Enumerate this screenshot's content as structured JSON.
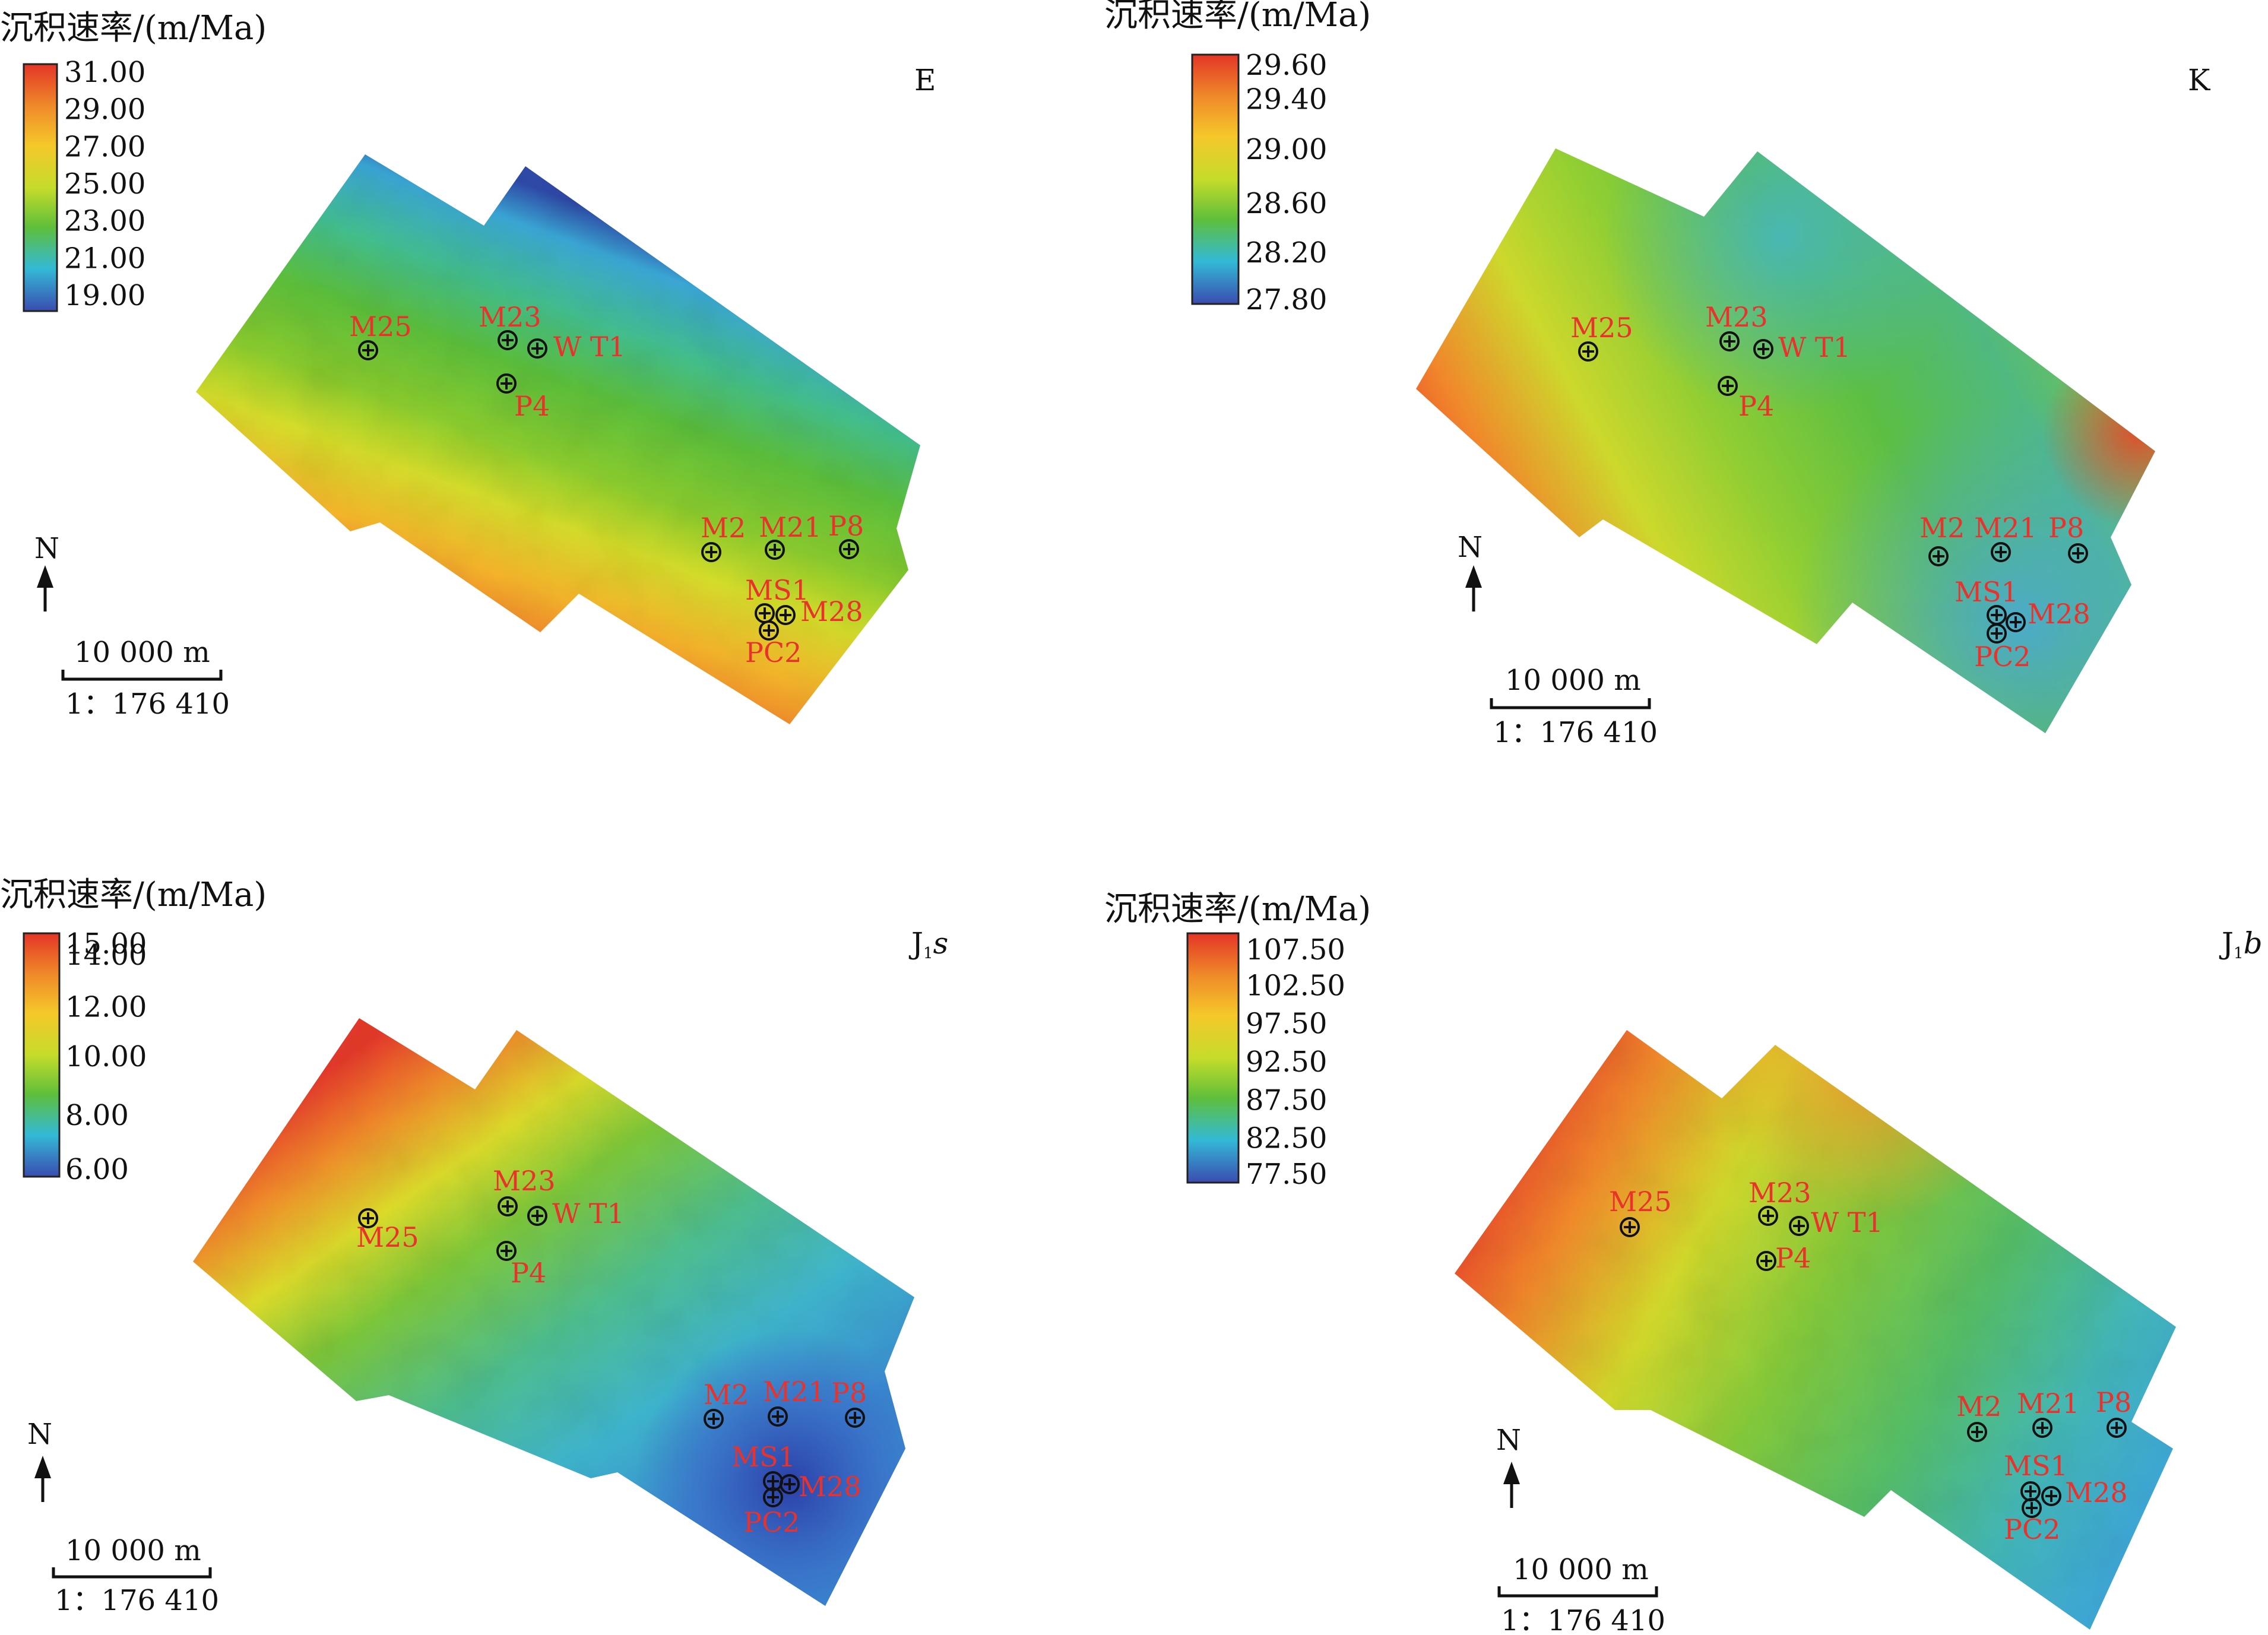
{
  "figure": {
    "panels": [
      {
        "id": "E",
        "label": "E",
        "legend": {
          "title": "沉积速率/(m/Ma)",
          "ticks": [
            "31.00",
            "29.00",
            "27.00",
            "25.00",
            "23.00",
            "21.00",
            "19.00"
          ]
        },
        "north": "N",
        "scale": {
          "distance": "10 000 m",
          "ratio": "1：176 410"
        },
        "wells": [
          "M25",
          "M23",
          "W T1",
          "P4",
          "M2",
          "M21",
          "P8",
          "MS1",
          "M28",
          "PC2"
        ],
        "gradient": [
          "#3a4cb0",
          "#33b9d6",
          "#5fbf3a",
          "#c6dc2a",
          "#f5c82a",
          "#f08a2a",
          "#e43527"
        ]
      },
      {
        "id": "K",
        "label": "K",
        "legend": {
          "title": "沉积速率/(m/Ma)",
          "ticks": [
            "29.60",
            "29.40",
            "29.00",
            "28.60",
            "28.20",
            "27.80"
          ]
        },
        "north": "N",
        "scale": {
          "distance": "10 000 m",
          "ratio": "1：176 410"
        },
        "wells": [
          "M25",
          "M23",
          "W T1",
          "P4",
          "M2",
          "M21",
          "P8",
          "MS1",
          "M28",
          "PC2"
        ],
        "gradient": [
          "#3a4cb0",
          "#33b9d6",
          "#5fbf3a",
          "#c6dc2a",
          "#f5c82a",
          "#f08a2a",
          "#e43527"
        ]
      },
      {
        "id": "J1s",
        "label_main": "J",
        "label_sub": "1",
        "label_italic": "s",
        "legend": {
          "title": "沉积速率/(m/Ma)",
          "ticks": [
            "15.00",
            "14.00",
            "12.00",
            "10.00",
            "8.00",
            "6.00"
          ]
        },
        "north": "N",
        "scale": {
          "distance": "10 000 m",
          "ratio": "1：176 410"
        },
        "wells": [
          "M25",
          "M23",
          "W T1",
          "P4",
          "M2",
          "M21",
          "P8",
          "MS1",
          "M28",
          "PC2"
        ],
        "gradient": [
          "#3a4cb0",
          "#33b9d6",
          "#5fbf3a",
          "#c6dc2a",
          "#f5c82a",
          "#f08a2a",
          "#e43527"
        ]
      },
      {
        "id": "J1b",
        "label_main": "J",
        "label_sub": "1",
        "label_italic": "b",
        "legend": {
          "title": "沉积速率/(m/Ma)",
          "ticks": [
            "107.50",
            "102.50",
            "97.50",
            "92.50",
            "87.50",
            "82.50",
            "77.50"
          ]
        },
        "north": "N",
        "scale": {
          "distance": "10 000 m",
          "ratio": "1：176 410"
        },
        "wells": [
          "M25",
          "M23",
          "W T1",
          "P4",
          "M2",
          "M21",
          "P8",
          "MS1",
          "M28",
          "PC2"
        ],
        "gradient": [
          "#3a4cb0",
          "#33b9d6",
          "#5fbf3a",
          "#c6dc2a",
          "#f5c82a",
          "#f08a2a",
          "#e43527"
        ]
      }
    ],
    "colors": {
      "well_label": "#e8322b",
      "well_symbol": "#111111"
    }
  }
}
